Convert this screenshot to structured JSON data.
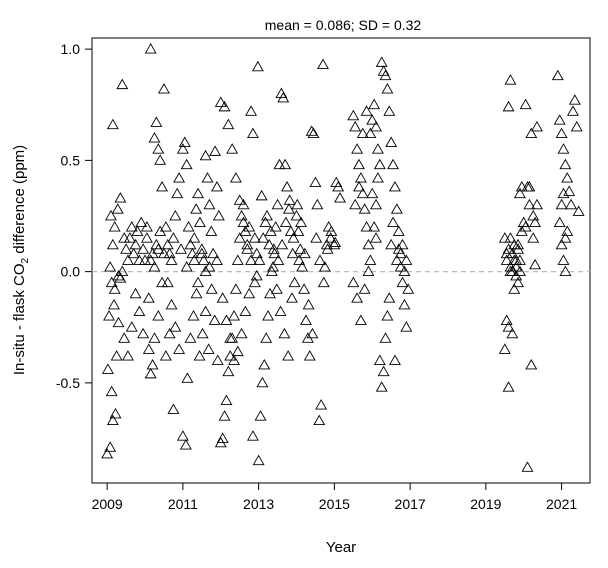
{
  "chart_data": {
    "type": "scatter",
    "title": "mean = 0.086; SD = 0.32",
    "xlabel": "Year",
    "ylabel_pre": "In-situ - flask CO",
    "ylabel_sub": "2",
    "ylabel_post": " difference (ppm)",
    "xlim": [
      2008.6,
      2021.75
    ],
    "ylim": [
      -0.95,
      1.05
    ],
    "xticks": [
      2009,
      2011,
      2013,
      2015,
      2017,
      2019,
      2021
    ],
    "xtick_labels": [
      "2009",
      "2011",
      "2013",
      "2015",
      "2017",
      "2019",
      "2021"
    ],
    "yticks": [
      -0.5,
      0.0,
      0.5,
      1.0
    ],
    "ytick_labels": [
      "-0.5",
      "0.0",
      "0.5",
      "1.0"
    ],
    "reference_line": {
      "y": 0.0,
      "style": "dashed",
      "color": "#bbbbbb"
    },
    "marker": "open-triangle",
    "grid": false,
    "points": [
      [
        2009.0,
        -0.82
      ],
      [
        2009.08,
        -0.79
      ],
      [
        2009.15,
        -0.67
      ],
      [
        2009.22,
        -0.64
      ],
      [
        2009.02,
        -0.44
      ],
      [
        2009.12,
        -0.54
      ],
      [
        2009.25,
        -0.38
      ],
      [
        2009.05,
        -0.2
      ],
      [
        2009.18,
        -0.15
      ],
      [
        2009.3,
        -0.23
      ],
      [
        2009.08,
        0.02
      ],
      [
        2009.15,
        0.12
      ],
      [
        2009.1,
        0.25
      ],
      [
        2009.2,
        0.2
      ],
      [
        2009.28,
        0.28
      ],
      [
        2009.35,
        0.33
      ],
      [
        2009.15,
        0.66
      ],
      [
        2009.4,
        0.84
      ],
      [
        2009.45,
        0.15
      ],
      [
        2009.5,
        0.1
      ],
      [
        2009.55,
        0.05
      ],
      [
        2009.6,
        0.15
      ],
      [
        2009.65,
        0.2
      ],
      [
        2009.7,
        0.08
      ],
      [
        2009.75,
        0.12
      ],
      [
        2009.8,
        0.18
      ],
      [
        2009.85,
        0.05
      ],
      [
        2009.9,
        0.22
      ],
      [
        2009.95,
        0.1
      ],
      [
        2009.35,
        -0.03
      ],
      [
        2009.45,
        -0.3
      ],
      [
        2009.55,
        -0.38
      ],
      [
        2009.65,
        -0.25
      ],
      [
        2009.75,
        -0.1
      ],
      [
        2009.85,
        -0.18
      ],
      [
        2009.95,
        -0.28
      ],
      [
        2009.12,
        -0.05
      ],
      [
        2009.2,
        -0.08
      ],
      [
        2009.3,
        -0.02
      ],
      [
        2009.4,
        0.0
      ],
      [
        2010.0,
        0.05
      ],
      [
        2010.05,
        0.15
      ],
      [
        2010.1,
        -0.35
      ],
      [
        2010.15,
        -0.46
      ],
      [
        2010.2,
        -0.42
      ],
      [
        2010.25,
        0.6
      ],
      [
        2010.3,
        0.67
      ],
      [
        2010.35,
        0.55
      ],
      [
        2010.4,
        0.5
      ],
      [
        2010.45,
        0.38
      ],
      [
        2010.5,
        0.82
      ],
      [
        2010.15,
        1.0
      ],
      [
        2010.55,
        0.2
      ],
      [
        2010.6,
        0.12
      ],
      [
        2010.65,
        0.08
      ],
      [
        2010.7,
        0.05
      ],
      [
        2010.75,
        0.15
      ],
      [
        2010.8,
        0.25
      ],
      [
        2010.85,
        0.35
      ],
      [
        2010.9,
        0.42
      ],
      [
        2010.95,
        0.1
      ],
      [
        2010.2,
        0.08
      ],
      [
        2010.3,
        0.12
      ],
      [
        2010.4,
        0.18
      ],
      [
        2010.5,
        0.08
      ],
      [
        2010.6,
        -0.05
      ],
      [
        2010.7,
        -0.15
      ],
      [
        2010.8,
        -0.25
      ],
      [
        2010.9,
        -0.35
      ],
      [
        2010.1,
        -0.12
      ],
      [
        2010.25,
        -0.3
      ],
      [
        2010.35,
        -0.2
      ],
      [
        2010.45,
        -0.05
      ],
      [
        2010.55,
        -0.38
      ],
      [
        2010.65,
        -0.28
      ],
      [
        2010.75,
        -0.62
      ],
      [
        2010.05,
        0.2
      ],
      [
        2010.15,
        0.05
      ],
      [
        2010.25,
        0.02
      ],
      [
        2010.35,
        0.1
      ],
      [
        2011.0,
        0.55
      ],
      [
        2011.05,
        0.58
      ],
      [
        2011.1,
        0.48
      ],
      [
        2011.15,
        0.2
      ],
      [
        2011.2,
        0.12
      ],
      [
        2011.25,
        0.08
      ],
      [
        2011.3,
        0.15
      ],
      [
        2011.35,
        0.28
      ],
      [
        2011.4,
        0.35
      ],
      [
        2011.45,
        0.22
      ],
      [
        2011.5,
        0.1
      ],
      [
        2011.55,
        0.05
      ],
      [
        2011.6,
        0.52
      ],
      [
        2011.65,
        0.42
      ],
      [
        2011.7,
        0.3
      ],
      [
        2011.75,
        0.18
      ],
      [
        2011.8,
        0.08
      ],
      [
        2011.85,
        0.54
      ],
      [
        2011.9,
        0.38
      ],
      [
        2011.95,
        0.25
      ],
      [
        2011.0,
        -0.74
      ],
      [
        2011.08,
        -0.78
      ],
      [
        2011.12,
        -0.48
      ],
      [
        2011.2,
        -0.3
      ],
      [
        2011.28,
        -0.2
      ],
      [
        2011.36,
        -0.1
      ],
      [
        2011.44,
        -0.38
      ],
      [
        2011.52,
        -0.28
      ],
      [
        2011.6,
        -0.18
      ],
      [
        2011.68,
        -0.35
      ],
      [
        2011.76,
        -0.08
      ],
      [
        2011.84,
        -0.22
      ],
      [
        2011.92,
        -0.4
      ],
      [
        2011.1,
        0.02
      ],
      [
        2011.3,
        0.05
      ],
      [
        2011.5,
        0.08
      ],
      [
        2011.7,
        0.02
      ],
      [
        2011.9,
        0.05
      ],
      [
        2011.4,
        -0.05
      ],
      [
        2011.6,
        0.0
      ],
      [
        2012.0,
        -0.77
      ],
      [
        2012.05,
        -0.75
      ],
      [
        2012.1,
        -0.65
      ],
      [
        2012.15,
        -0.58
      ],
      [
        2012.2,
        -0.45
      ],
      [
        2012.25,
        -0.38
      ],
      [
        2012.3,
        -0.3
      ],
      [
        2012.35,
        -0.2
      ],
      [
        2012.4,
        -0.08
      ],
      [
        2012.45,
        0.05
      ],
      [
        2012.5,
        0.15
      ],
      [
        2012.55,
        0.25
      ],
      [
        2012.6,
        0.3
      ],
      [
        2012.65,
        0.18
      ],
      [
        2012.7,
        0.1
      ],
      [
        2012.75,
        0.2
      ],
      [
        2012.8,
        0.72
      ],
      [
        2012.85,
        0.62
      ],
      [
        2012.9,
        0.15
      ],
      [
        2012.95,
        0.08
      ],
      [
        2012.0,
        0.76
      ],
      [
        2012.1,
        0.74
      ],
      [
        2012.2,
        0.66
      ],
      [
        2012.3,
        0.55
      ],
      [
        2012.4,
        0.42
      ],
      [
        2012.5,
        0.32
      ],
      [
        2012.6,
        0.22
      ],
      [
        2012.7,
        0.12
      ],
      [
        2012.8,
        0.05
      ],
      [
        2012.9,
        -0.05
      ],
      [
        2012.05,
        -0.12
      ],
      [
        2012.15,
        -0.22
      ],
      [
        2012.25,
        -0.3
      ],
      [
        2012.35,
        -0.4
      ],
      [
        2012.45,
        -0.36
      ],
      [
        2012.55,
        -0.28
      ],
      [
        2012.65,
        -0.18
      ],
      [
        2012.75,
        -0.1
      ],
      [
        2012.85,
        -0.74
      ],
      [
        2012.95,
        -0.02
      ],
      [
        2013.0,
        -0.85
      ],
      [
        2013.05,
        -0.65
      ],
      [
        2013.1,
        -0.5
      ],
      [
        2013.15,
        -0.42
      ],
      [
        2013.2,
        -0.3
      ],
      [
        2013.25,
        -0.2
      ],
      [
        2013.3,
        -0.1
      ],
      [
        2013.35,
        0.0
      ],
      [
        2013.4,
        0.1
      ],
      [
        2013.45,
        0.2
      ],
      [
        2013.5,
        0.3
      ],
      [
        2013.55,
        0.48
      ],
      [
        2013.6,
        0.8
      ],
      [
        2013.65,
        0.78
      ],
      [
        2013.7,
        0.48
      ],
      [
        2013.75,
        0.38
      ],
      [
        2013.8,
        0.28
      ],
      [
        2013.85,
        0.18
      ],
      [
        2013.9,
        0.08
      ],
      [
        2013.95,
        -0.05
      ],
      [
        2012.98,
        0.92
      ],
      [
        2013.08,
        0.34
      ],
      [
        2013.18,
        0.22
      ],
      [
        2013.28,
        0.12
      ],
      [
        2013.38,
        0.02
      ],
      [
        2013.48,
        -0.08
      ],
      [
        2013.58,
        -0.18
      ],
      [
        2013.68,
        -0.28
      ],
      [
        2013.78,
        -0.38
      ],
      [
        2013.88,
        -0.12
      ],
      [
        2013.12,
        0.15
      ],
      [
        2013.22,
        0.25
      ],
      [
        2013.32,
        0.18
      ],
      [
        2013.42,
        0.08
      ],
      [
        2013.52,
        0.05
      ],
      [
        2013.62,
        0.12
      ],
      [
        2013.72,
        0.22
      ],
      [
        2013.82,
        0.32
      ],
      [
        2013.92,
        0.15
      ],
      [
        2013.02,
        0.05
      ],
      [
        2014.0,
        0.25
      ],
      [
        2014.05,
        0.18
      ],
      [
        2014.1,
        0.1
      ],
      [
        2014.15,
        0.02
      ],
      [
        2014.2,
        -0.08
      ],
      [
        2014.25,
        -0.22
      ],
      [
        2014.3,
        -0.3
      ],
      [
        2014.35,
        -0.38
      ],
      [
        2014.4,
        0.63
      ],
      [
        2014.45,
        0.62
      ],
      [
        2014.5,
        0.4
      ],
      [
        2014.55,
        0.3
      ],
      [
        2014.6,
        -0.67
      ],
      [
        2014.65,
        -0.6
      ],
      [
        2014.7,
        0.93
      ],
      [
        2014.75,
        0.02
      ],
      [
        2014.8,
        0.12
      ],
      [
        2014.85,
        0.2
      ],
      [
        2014.9,
        0.15
      ],
      [
        2014.02,
        0.3
      ],
      [
        2014.12,
        0.22
      ],
      [
        2014.22,
        0.08
      ],
      [
        2014.32,
        -0.15
      ],
      [
        2014.42,
        -0.28
      ],
      [
        2014.52,
        0.15
      ],
      [
        2014.62,
        0.05
      ],
      [
        2014.72,
        -0.05
      ],
      [
        2014.82,
        0.1
      ],
      [
        2014.92,
        0.18
      ],
      [
        2014.07,
        0.05
      ],
      [
        2015.0,
        0.12
      ],
      [
        2015.05,
        0.4
      ],
      [
        2015.1,
        0.38
      ],
      [
        2015.15,
        0.33
      ],
      [
        2015.02,
        0.13
      ],
      [
        2015.5,
        0.7
      ],
      [
        2015.55,
        0.65
      ],
      [
        2015.6,
        0.55
      ],
      [
        2015.65,
        0.48
      ],
      [
        2015.7,
        0.42
      ],
      [
        2015.75,
        0.35
      ],
      [
        2015.8,
        0.28
      ],
      [
        2015.85,
        0.2
      ],
      [
        2015.9,
        0.12
      ],
      [
        2015.95,
        0.05
      ],
      [
        2015.5,
        -0.05
      ],
      [
        2015.6,
        -0.12
      ],
      [
        2015.7,
        -0.22
      ],
      [
        2015.8,
        -0.08
      ],
      [
        2015.9,
        0.0
      ],
      [
        2015.55,
        0.3
      ],
      [
        2015.65,
        0.38
      ],
      [
        2015.75,
        0.62
      ],
      [
        2015.85,
        0.72
      ],
      [
        2015.95,
        0.62
      ],
      [
        2016.0,
        0.68
      ],
      [
        2016.05,
        0.75
      ],
      [
        2016.1,
        0.65
      ],
      [
        2016.15,
        0.55
      ],
      [
        2016.2,
        0.48
      ],
      [
        2016.25,
        0.94
      ],
      [
        2016.3,
        0.9
      ],
      [
        2016.35,
        0.88
      ],
      [
        2016.4,
        0.82
      ],
      [
        2016.45,
        0.72
      ],
      [
        2016.5,
        0.58
      ],
      [
        2016.55,
        0.48
      ],
      [
        2016.6,
        0.38
      ],
      [
        2016.65,
        0.28
      ],
      [
        2016.7,
        0.18
      ],
      [
        2016.75,
        0.08
      ],
      [
        2016.8,
        -0.05
      ],
      [
        2016.85,
        -0.15
      ],
      [
        2016.9,
        -0.25
      ],
      [
        2016.95,
        -0.08
      ],
      [
        2016.2,
        -0.4
      ],
      [
        2016.25,
        -0.52
      ],
      [
        2016.3,
        -0.45
      ],
      [
        2016.35,
        -0.3
      ],
      [
        2016.4,
        -0.2
      ],
      [
        2016.45,
        -0.12
      ],
      [
        2016.5,
        0.12
      ],
      [
        2016.55,
        0.22
      ],
      [
        2016.6,
        -0.4
      ],
      [
        2016.65,
        0.05
      ],
      [
        2016.7,
        0.1
      ],
      [
        2016.75,
        0.02
      ],
      [
        2016.8,
        0.12
      ],
      [
        2016.85,
        0.0
      ],
      [
        2016.9,
        0.05
      ],
      [
        2016.1,
        0.3
      ],
      [
        2016.15,
        0.42
      ],
      [
        2016.05,
        0.2
      ],
      [
        2016.0,
        0.35
      ],
      [
        2016.1,
        0.15
      ],
      [
        2019.5,
        -0.35
      ],
      [
        2019.55,
        -0.22
      ],
      [
        2019.6,
        -0.52
      ],
      [
        2019.65,
        0.0
      ],
      [
        2019.7,
        0.08
      ],
      [
        2019.75,
        0.12
      ],
      [
        2019.8,
        0.02
      ],
      [
        2019.85,
        -0.05
      ],
      [
        2019.9,
        0.35
      ],
      [
        2019.95,
        0.38
      ],
      [
        2019.55,
        0.05
      ],
      [
        2019.6,
        0.1
      ],
      [
        2019.65,
        0.15
      ],
      [
        2019.7,
        0.0
      ],
      [
        2019.75,
        -0.08
      ],
      [
        2019.8,
        0.05
      ],
      [
        2019.85,
        0.12
      ],
      [
        2019.9,
        0.05
      ],
      [
        2019.95,
        0.18
      ],
      [
        2019.65,
        0.86
      ],
      [
        2019.6,
        0.74
      ],
      [
        2019.5,
        0.15
      ],
      [
        2019.6,
        -0.25
      ],
      [
        2019.7,
        -0.28
      ],
      [
        2019.8,
        -0.02
      ],
      [
        2019.9,
        0.0
      ],
      [
        2019.55,
        0.08
      ],
      [
        2019.65,
        0.02
      ],
      [
        2019.75,
        0.05
      ],
      [
        2019.85,
        0.1
      ],
      [
        2020.0,
        0.22
      ],
      [
        2020.05,
        0.75
      ],
      [
        2020.1,
        0.38
      ],
      [
        2020.15,
        0.3
      ],
      [
        2020.2,
        0.62
      ],
      [
        2020.25,
        0.25
      ],
      [
        2020.3,
        0.22
      ],
      [
        2020.35,
        0.65
      ],
      [
        2020.1,
        -0.88
      ],
      [
        2020.2,
        -0.42
      ],
      [
        2020.3,
        0.03
      ],
      [
        2020.15,
        0.38
      ],
      [
        2020.05,
        0.2
      ],
      [
        2020.25,
        0.15
      ],
      [
        2020.35,
        0.3
      ],
      [
        2020.9,
        0.88
      ],
      [
        2020.95,
        0.68
      ],
      [
        2021.0,
        0.62
      ],
      [
        2021.05,
        0.55
      ],
      [
        2021.1,
        0.48
      ],
      [
        2021.15,
        0.42
      ],
      [
        2021.2,
        0.36
      ],
      [
        2021.25,
        0.3
      ],
      [
        2021.3,
        0.72
      ],
      [
        2021.35,
        0.77
      ],
      [
        2021.4,
        0.65
      ],
      [
        2021.45,
        0.27
      ],
      [
        2020.95,
        0.22
      ],
      [
        2021.0,
        0.12
      ],
      [
        2021.05,
        0.05
      ],
      [
        2021.1,
        0.0
      ],
      [
        2021.15,
        0.18
      ],
      [
        2021.0,
        0.3
      ],
      [
        2021.05,
        0.35
      ],
      [
        2021.1,
        0.15
      ]
    ]
  }
}
